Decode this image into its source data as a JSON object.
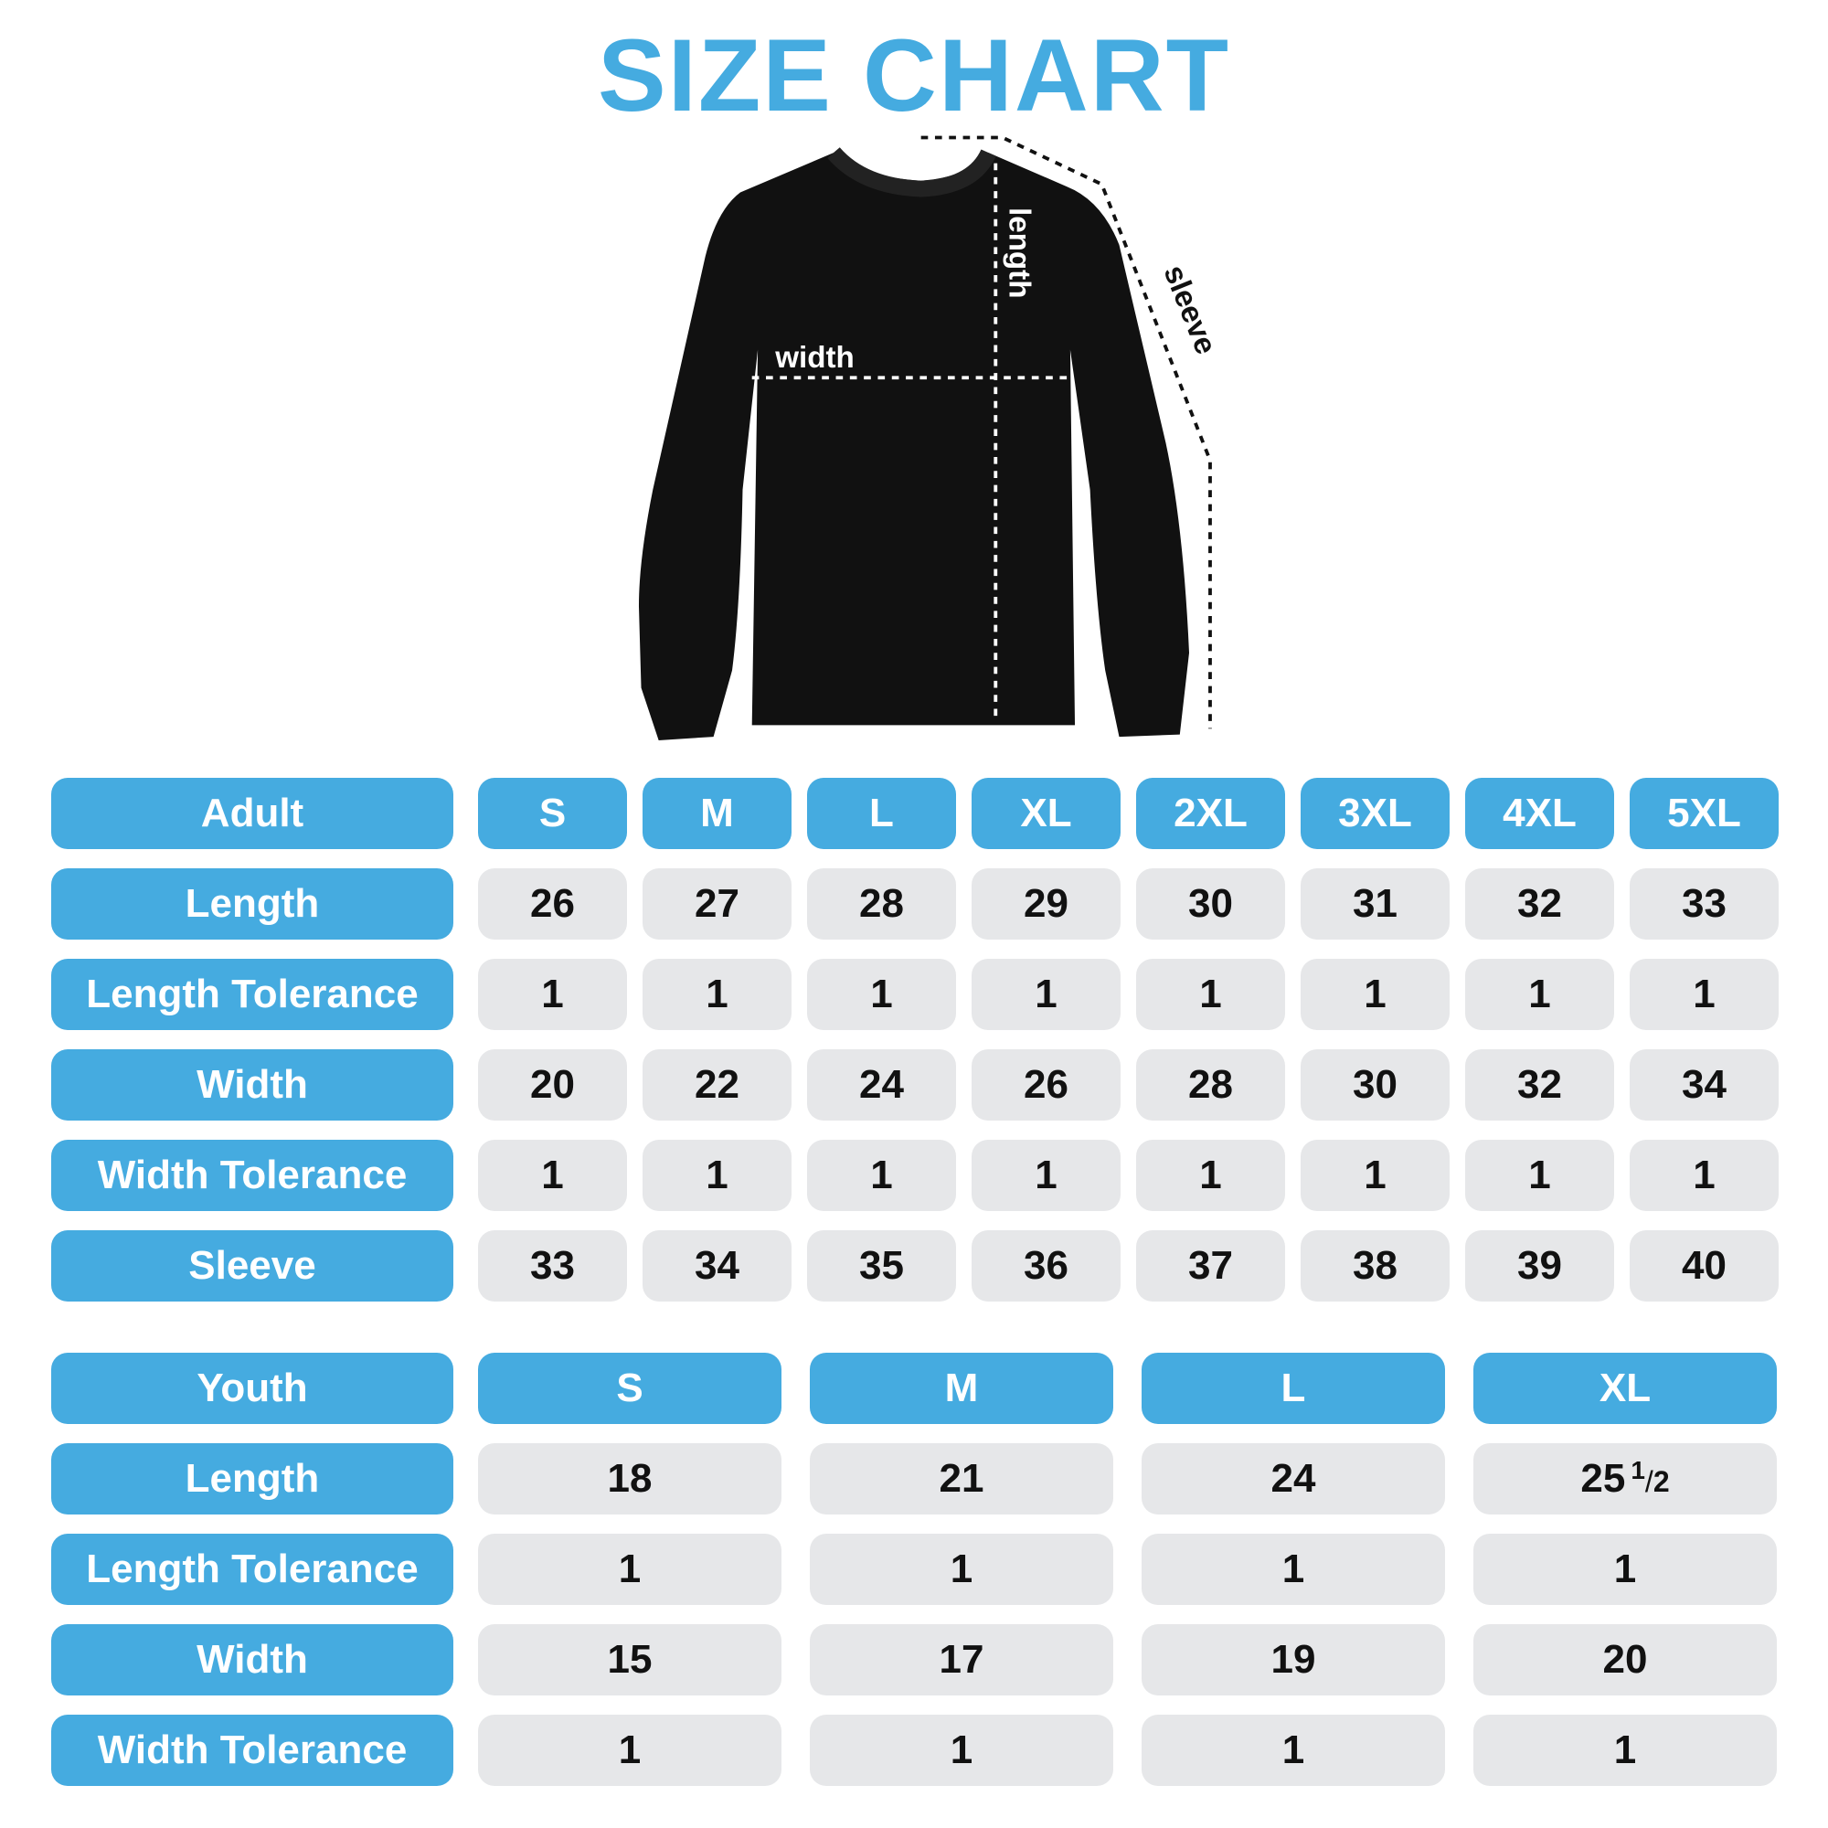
{
  "title": "SIZE CHART",
  "diagram": {
    "length_label": "length",
    "width_label": "width",
    "sleeve_label": "sleeve",
    "garment_color": "#111111"
  },
  "colors": {
    "accent": "#45abe0",
    "cell": "#e6e7e9"
  },
  "adult": {
    "header": "Adult",
    "sizes": [
      "S",
      "M",
      "L",
      "XL",
      "2XL",
      "3XL",
      "4XL",
      "5XL"
    ],
    "rows": [
      {
        "label": "Length",
        "values": [
          "26",
          "27",
          "28",
          "29",
          "30",
          "31",
          "32",
          "33"
        ]
      },
      {
        "label": "Length Tolerance",
        "values": [
          "1",
          "1",
          "1",
          "1",
          "1",
          "1",
          "1",
          "1"
        ]
      },
      {
        "label": "Width",
        "values": [
          "20",
          "22",
          "24",
          "26",
          "28",
          "30",
          "32",
          "34"
        ]
      },
      {
        "label": "Width Tolerance",
        "values": [
          "1",
          "1",
          "1",
          "1",
          "1",
          "1",
          "1",
          "1"
        ]
      },
      {
        "label": "Sleeve",
        "values": [
          "33",
          "34",
          "35",
          "36",
          "37",
          "38",
          "39",
          "40"
        ]
      }
    ]
  },
  "youth": {
    "header": "Youth",
    "sizes": [
      "S",
      "M",
      "L",
      "XL"
    ],
    "rows": [
      {
        "label": "Length",
        "values": [
          "18",
          "21",
          "24",
          "25"
        ],
        "fraction": {
          "index": 3,
          "num": "1",
          "den": "2"
        }
      },
      {
        "label": "Length Tolerance",
        "values": [
          "1",
          "1",
          "1",
          "1"
        ]
      },
      {
        "label": "Width",
        "values": [
          "15",
          "17",
          "19",
          "20"
        ]
      },
      {
        "label": "Width Tolerance",
        "values": [
          "1",
          "1",
          "1",
          "1"
        ]
      }
    ]
  }
}
